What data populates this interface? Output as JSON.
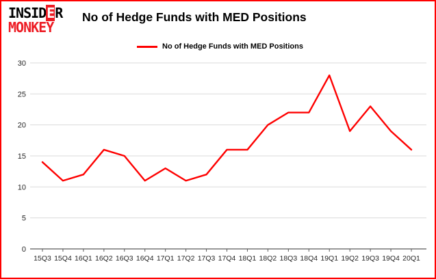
{
  "header": {
    "title": "No of Hedge Funds with MED Positions"
  },
  "logo": {
    "line1_pre": "INSID",
    "line1_accent": "E",
    "line1_post": "R",
    "line2": "MONKEY"
  },
  "legend": {
    "label": "No of Hedge Funds with MED Positions",
    "color": "#fe0000"
  },
  "chart_data": {
    "type": "line",
    "title": "No of Hedge Funds with MED Positions",
    "categories": [
      "15Q3",
      "15Q4",
      "16Q1",
      "16Q2",
      "16Q3",
      "16Q4",
      "17Q1",
      "17Q2",
      "17Q3",
      "17Q4",
      "18Q1",
      "18Q2",
      "18Q3",
      "18Q4",
      "19Q1",
      "19Q2",
      "19Q3",
      "19Q4",
      "20Q1"
    ],
    "series": [
      {
        "name": "No of Hedge Funds with MED Positions",
        "color": "#fe0000",
        "values": [
          14,
          11,
          12,
          16,
          15,
          11,
          13,
          11,
          12,
          16,
          16,
          20,
          22,
          22,
          28,
          19,
          23,
          19,
          16
        ]
      }
    ],
    "xlabel": "",
    "ylabel": "",
    "ylim": [
      0,
      30
    ],
    "yticks": [
      0,
      5,
      10,
      15,
      20,
      25,
      30
    ],
    "grid": true,
    "legend_position": "top-left"
  },
  "colors": {
    "frame_border": "#fe0000",
    "gridline": "#d9d9d9",
    "axis": "#595959",
    "tick_text": "#262626",
    "logo_red": "#ed1c24"
  }
}
